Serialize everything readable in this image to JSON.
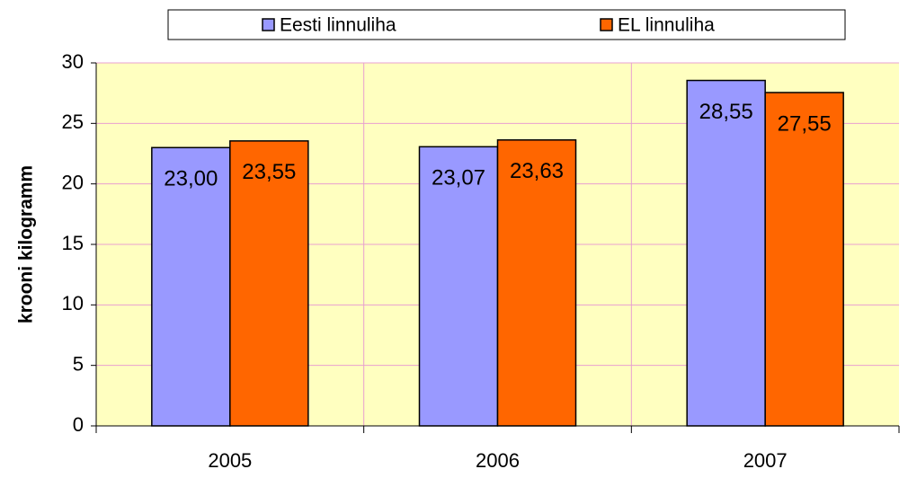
{
  "chart_data": {
    "type": "bar",
    "categories": [
      "2005",
      "2006",
      "2007"
    ],
    "series": [
      {
        "name": "Eesti linnuliha",
        "color": "#9999ff",
        "values": [
          23.0,
          23.07,
          28.55
        ],
        "value_labels": [
          "23,00",
          "23,07",
          "28,55"
        ]
      },
      {
        "name": "EL linnuliha",
        "color": "#ff6600",
        "values": [
          23.55,
          23.63,
          27.55
        ],
        "value_labels": [
          "23,55",
          "23,63",
          "27,55"
        ]
      }
    ],
    "y_label": "krooni kilogramm",
    "ylim": [
      0,
      30
    ],
    "yticks": [
      0,
      5,
      10,
      15,
      20,
      25,
      30
    ],
    "grid": true,
    "legend_position": "top"
  }
}
